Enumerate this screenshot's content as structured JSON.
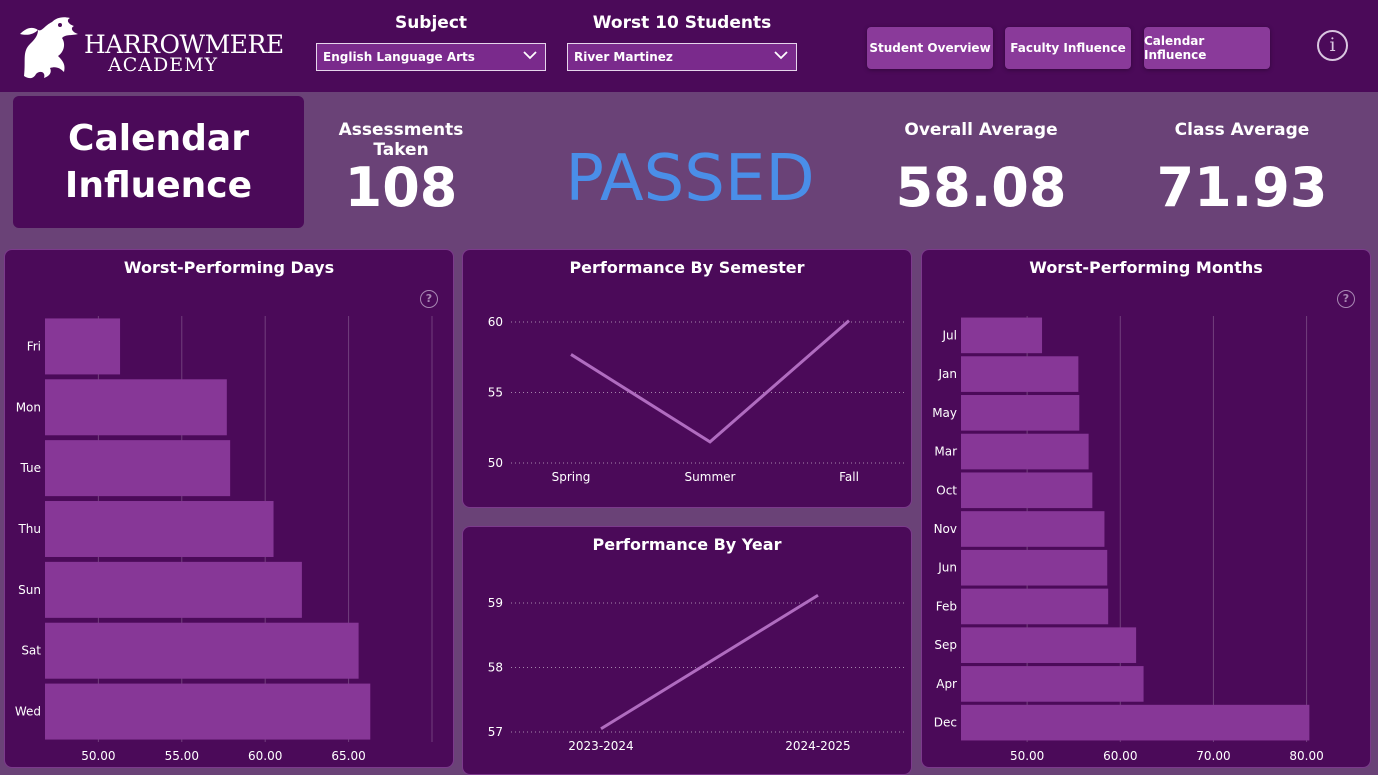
{
  "brand": {
    "name": "HARROWMERE",
    "sub": "ACADEMY"
  },
  "filters": {
    "subject": {
      "title": "Subject",
      "value": "English Language Arts"
    },
    "student": {
      "title": "Worst 10 Students",
      "value": "River Martinez"
    }
  },
  "nav": [
    {
      "label": "Student Overview"
    },
    {
      "label": "Faculty Influence"
    },
    {
      "label": "Calendar Influence"
    }
  ],
  "info_glyph": "i",
  "page_title": "Calendar Influence",
  "kpis": {
    "assessments": {
      "label": "Assessments Taken",
      "value": "108"
    },
    "status": {
      "value": "PASSED",
      "color": "#4a8ee8"
    },
    "overall": {
      "label": "Overall Average",
      "value": "58.08"
    },
    "class": {
      "label": "Class Average",
      "value": "71.93"
    }
  },
  "help_glyph": "?",
  "colors": {
    "panel": "#4b0a59",
    "bar": "#873797",
    "line": "#b06cc0",
    "background": "#6a4277"
  },
  "chart_data": [
    {
      "type": "bar",
      "orientation": "horizontal",
      "title": "Worst-Performing Days",
      "categories": [
        "Fri",
        "Mon",
        "Tue",
        "Thu",
        "Sun",
        "Sat",
        "Wed"
      ],
      "values": [
        51.3,
        57.7,
        57.9,
        60.5,
        62.2,
        65.6,
        66.3
      ],
      "xticks": [
        "50.00",
        "55.00",
        "60.00",
        "65.00"
      ],
      "xlim": [
        46.8,
        70.3
      ],
      "grid": true
    },
    {
      "type": "line",
      "title": "Performance By Semester",
      "categories": [
        "Spring",
        "Summer",
        "Fall"
      ],
      "values": [
        57.7,
        51.5,
        60.1
      ],
      "yticks": [
        "50",
        "55",
        "60"
      ],
      "ylim": [
        50,
        60
      ],
      "grid": true
    },
    {
      "type": "line",
      "title": "Performance By Year",
      "categories": [
        "2023-2024",
        "2024-2025"
      ],
      "values": [
        57.05,
        59.12
      ],
      "yticks": [
        "57",
        "58",
        "59"
      ],
      "ylim": [
        57,
        59
      ],
      "grid": true
    },
    {
      "type": "bar",
      "orientation": "horizontal",
      "title": "Worst-Performing Months",
      "categories": [
        "Jul",
        "Jan",
        "May",
        "Mar",
        "Oct",
        "Nov",
        "Jun",
        "Feb",
        "Sep",
        "Apr",
        "Dec"
      ],
      "values": [
        51.6,
        55.5,
        55.6,
        56.6,
        57.0,
        58.3,
        58.6,
        58.7,
        61.7,
        62.5,
        80.3
      ],
      "xticks": [
        "50.00",
        "60.00",
        "70.00",
        "80.00"
      ],
      "xlim": [
        42.9,
        82.3
      ],
      "grid": true
    }
  ]
}
